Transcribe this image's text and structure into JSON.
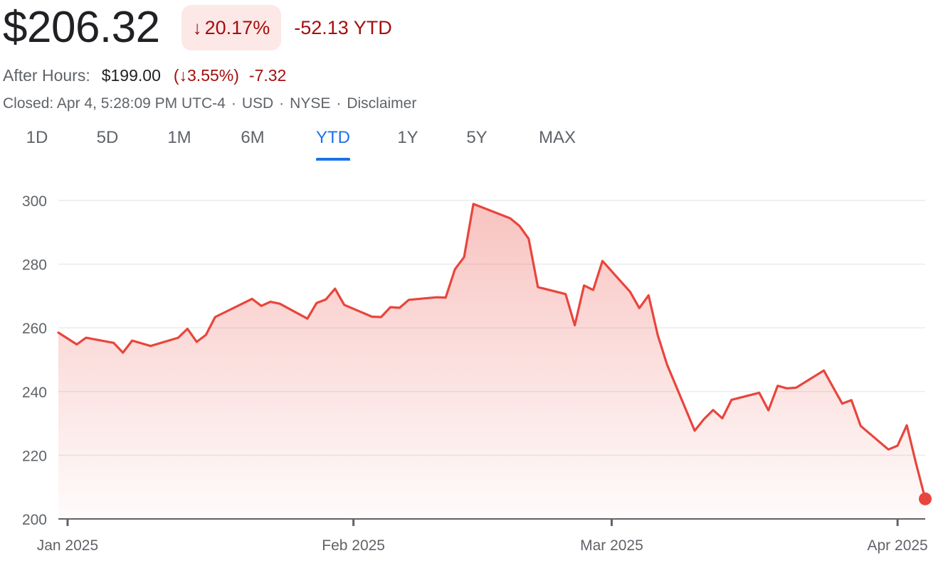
{
  "header": {
    "price": "$206.32",
    "change_pct": "20.17%",
    "change_abs": "-52.13 YTD",
    "after_hours_label": "After Hours:",
    "after_hours_price": "$199.00",
    "after_hours_pct": "(↓3.55%)",
    "after_hours_change": "-7.32",
    "meta": [
      "Closed: Apr 4, 5:28:09 PM UTC-4",
      "USD",
      "NYSE",
      "Disclaimer"
    ]
  },
  "icons": {
    "down_arrow": "arrow-down-icon"
  },
  "tabs": [
    {
      "label": "1D",
      "active": false
    },
    {
      "label": "5D",
      "active": false
    },
    {
      "label": "1M",
      "active": false
    },
    {
      "label": "6M",
      "active": false
    },
    {
      "label": "YTD",
      "active": true
    },
    {
      "label": "1Y",
      "active": false
    },
    {
      "label": "5Y",
      "active": false
    },
    {
      "label": "MAX",
      "active": false
    }
  ],
  "colors": {
    "line": "#e8453c",
    "negative_text": "#a50e0e",
    "active_tab": "#1a73e8",
    "badge_bg": "#fce8e6"
  },
  "chart_data": {
    "type": "area",
    "title": "",
    "xlabel": "",
    "ylabel": "",
    "ylim": [
      200,
      300
    ],
    "yticks": [
      200,
      220,
      240,
      260,
      280,
      300
    ],
    "grid": true,
    "xticks": [
      {
        "label": "Jan 2025",
        "date": "2025-01-01"
      },
      {
        "label": "Feb 2025",
        "date": "2025-02-01"
      },
      {
        "label": "Mar 2025",
        "date": "2025-03-01"
      },
      {
        "label": "Apr 2025",
        "date": "2025-04-01"
      }
    ],
    "series": [
      {
        "x": [
          "2024-12-31",
          "2025-01-02",
          "2025-01-03",
          "2025-01-06",
          "2025-01-07",
          "2025-01-08",
          "2025-01-10",
          "2025-01-13",
          "2025-01-14",
          "2025-01-15",
          "2025-01-16",
          "2025-01-17",
          "2025-01-21",
          "2025-01-22",
          "2025-01-23",
          "2025-01-24",
          "2025-01-27",
          "2025-01-28",
          "2025-01-29",
          "2025-01-30",
          "2025-01-31",
          "2025-02-03",
          "2025-02-04",
          "2025-02-05",
          "2025-02-06",
          "2025-02-07",
          "2025-02-10",
          "2025-02-11",
          "2025-02-12",
          "2025-02-13",
          "2025-02-14",
          "2025-02-18",
          "2025-02-19",
          "2025-02-20",
          "2025-02-21",
          "2025-02-24",
          "2025-02-25",
          "2025-02-26",
          "2025-02-27",
          "2025-02-28",
          "2025-03-03",
          "2025-03-04",
          "2025-03-05",
          "2025-03-06",
          "2025-03-07",
          "2025-03-10",
          "2025-03-11",
          "2025-03-12",
          "2025-03-13",
          "2025-03-14",
          "2025-03-17",
          "2025-03-18",
          "2025-03-19",
          "2025-03-20",
          "2025-03-21",
          "2025-03-24",
          "2025-03-25",
          "2025-03-26",
          "2025-03-27",
          "2025-03-28",
          "2025-03-31",
          "2025-04-01",
          "2025-04-02",
          "2025-04-03",
          "2025-04-04"
        ],
        "y": [
          258.5,
          254.8,
          256.9,
          255.3,
          252.2,
          256.0,
          254.3,
          256.9,
          259.7,
          255.6,
          257.8,
          263.4,
          269.1,
          266.9,
          268.2,
          267.6,
          262.9,
          267.8,
          268.9,
          272.3,
          267.2,
          263.5,
          263.4,
          266.5,
          266.3,
          268.8,
          269.6,
          269.5,
          278.4,
          282.2,
          298.9,
          294.4,
          292.0,
          288.0,
          272.8,
          270.6,
          260.8,
          273.3,
          271.9,
          281.0,
          271.3,
          266.2,
          270.2,
          257.7,
          248.5,
          227.7,
          231.3,
          234.2,
          231.6,
          237.4,
          239.6,
          234.1,
          241.8,
          241.0,
          241.2,
          246.6,
          241.4,
          236.2,
          237.3,
          229.2,
          221.8,
          223.0,
          229.4,
          217.5,
          206.3
        ]
      }
    ]
  }
}
